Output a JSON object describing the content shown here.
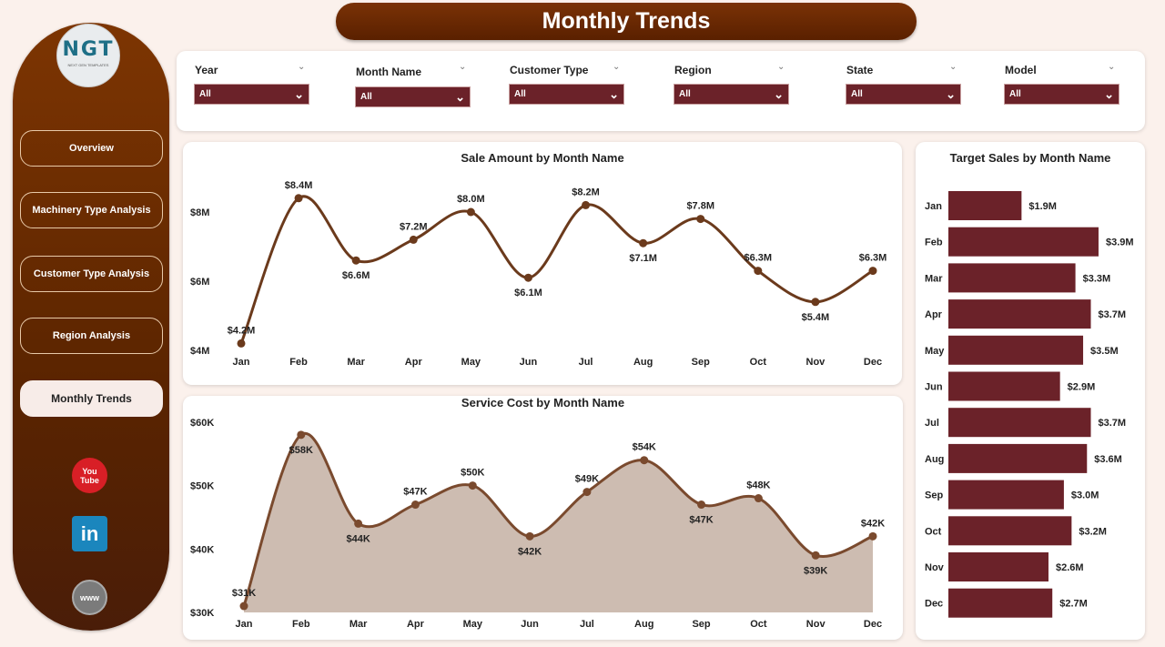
{
  "title": "Monthly Trends",
  "logo": {
    "text": "NGT",
    "subtext": "NEXT GEN TEMPLATES"
  },
  "nav": [
    {
      "label": "Overview"
    },
    {
      "label": "Machinery Type Analysis"
    },
    {
      "label": "Customer Type Analysis"
    },
    {
      "label": "Region Analysis"
    },
    {
      "label": "Monthly Trends",
      "active": true
    }
  ],
  "social": [
    {
      "icon": "youtube-icon",
      "label": "You Tube",
      "color": "#d81f26"
    },
    {
      "icon": "linkedin-icon",
      "label": "in",
      "color": "#1b86bd"
    },
    {
      "icon": "globe-icon",
      "label": "www",
      "color": "#7b7b7b"
    }
  ],
  "filters": [
    {
      "label": "Year",
      "value": "All"
    },
    {
      "label": "Month Name",
      "value": "All"
    },
    {
      "label": "Customer Type",
      "value": "All"
    },
    {
      "label": "Region",
      "value": "All"
    },
    {
      "label": "State",
      "value": "All"
    },
    {
      "label": "Model",
      "value": "All"
    }
  ],
  "colors": {
    "accent": "#6b2229",
    "line": "#6b3a1c",
    "area": "#cdbcb1",
    "sidebar": "#6a2a02"
  },
  "chart_data": [
    {
      "type": "line",
      "title": "Sale Amount by Month Name",
      "categories": [
        "Jan",
        "Feb",
        "Mar",
        "Apr",
        "May",
        "Jun",
        "Jul",
        "Aug",
        "Sep",
        "Oct",
        "Nov",
        "Dec"
      ],
      "values": [
        4.2,
        8.4,
        6.6,
        7.2,
        8.0,
        6.1,
        8.2,
        7.1,
        7.8,
        6.3,
        5.4,
        6.3
      ],
      "labels": [
        "$4.2M",
        "$8.4M",
        "$6.6M",
        "$7.2M",
        "$8.0M",
        "$6.1M",
        "$8.2M",
        "$7.1M",
        "$7.8M",
        "$6.3M",
        "$5.4M",
        "$6.3M"
      ],
      "yticks": [
        "$4M",
        "$6M",
        "$8M"
      ],
      "ytick_values": [
        4,
        6,
        8
      ],
      "unit": "M",
      "grid": false
    },
    {
      "type": "area",
      "title": "Service Cost by Month Name",
      "categories": [
        "Jan",
        "Feb",
        "Mar",
        "Apr",
        "May",
        "Jun",
        "Jul",
        "Aug",
        "Sep",
        "Oct",
        "Nov",
        "Dec"
      ],
      "values": [
        31,
        58,
        44,
        47,
        50,
        42,
        49,
        54,
        47,
        48,
        39,
        42
      ],
      "labels": [
        "$31K",
        "$58K",
        "$44K",
        "$47K",
        "$50K",
        "$42K",
        "$49K",
        "$54K",
        "$47K",
        "$48K",
        "$39K",
        "$42K"
      ],
      "yticks": [
        "$30K",
        "$40K",
        "$50K",
        "$60K"
      ],
      "ytick_values": [
        30,
        40,
        50,
        60
      ],
      "unit": "K",
      "grid": false
    },
    {
      "type": "bar",
      "orientation": "horizontal",
      "title": "Target Sales by Month Name",
      "categories": [
        "Jan",
        "Feb",
        "Mar",
        "Apr",
        "May",
        "Jun",
        "Jul",
        "Aug",
        "Sep",
        "Oct",
        "Nov",
        "Dec"
      ],
      "values": [
        1.9,
        3.9,
        3.3,
        3.7,
        3.5,
        2.9,
        3.7,
        3.6,
        3.0,
        3.2,
        2.6,
        2.7
      ],
      "labels": [
        "$1.9M",
        "$3.9M",
        "$3.3M",
        "$3.7M",
        "$3.5M",
        "$2.9M",
        "$3.7M",
        "$3.6M",
        "$3.0M",
        "$3.2M",
        "$2.6M",
        "$2.7M"
      ],
      "unit": "M"
    }
  ]
}
